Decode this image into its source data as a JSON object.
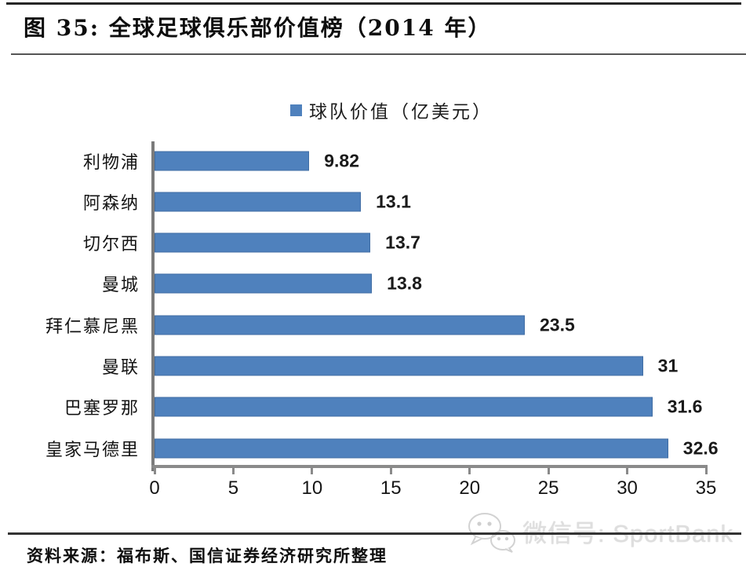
{
  "figure": {
    "label": "图 35:",
    "title": "图 35: 全球足球俱乐部价值榜（2014 年）"
  },
  "chart_data": {
    "type": "bar",
    "orientation": "horizontal",
    "title": "全球足球俱乐部价值榜（2014 年）",
    "legend": "球队价值（亿美元）",
    "legend_position": "top-center",
    "categories": [
      "利物浦",
      "阿森纳",
      "切尔西",
      "曼城",
      "拜仁慕尼黑",
      "曼联",
      "巴塞罗那",
      "皇家马德里"
    ],
    "values": [
      9.82,
      13.1,
      13.7,
      13.8,
      23.5,
      31,
      31.6,
      32.6
    ],
    "value_labels": [
      "9.82",
      "13.1",
      "13.7",
      "13.8",
      "23.5",
      "31",
      "31.6",
      "32.6"
    ],
    "xlim": [
      0,
      35
    ],
    "x_ticks": [
      0,
      5,
      10,
      15,
      20,
      25,
      30,
      35
    ],
    "grid": false,
    "bar_color": "#4f81bd",
    "axis_color": "#8a8a8a"
  },
  "footer": {
    "source": "资料来源：福布斯、国信证券经济研究所整理",
    "watermark": "微信号: SportBank",
    "watermark_icon": "wechat-icon"
  }
}
